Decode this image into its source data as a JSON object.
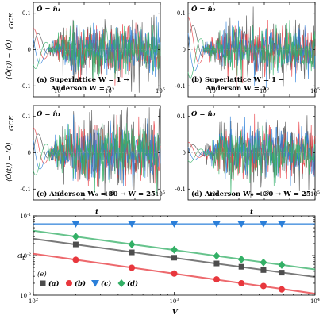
{
  "panels": [
    {
      "key": "a",
      "observable": "Ô = n̂₁",
      "label": "(a) Superlattice W = 1 →",
      "label2": "Anderson W = 5"
    },
    {
      "key": "b",
      "observable": "Ô = n̂₀",
      "label": "(b) Superlattice W = 1 →",
      "label2": "Anderson W = 5"
    },
    {
      "key": "c",
      "observable": "Ô = n̂₁",
      "label": "(c) Anderson W₀ = 30 → W = 25",
      "label2": ""
    },
    {
      "key": "d",
      "observable": "Ô = n̂₀",
      "label": "(d) Anderson W₀ = 30 → W = 25",
      "label2": ""
    }
  ],
  "ylabel_top": "⟨Ô(t)⟩ − ⟨Ô⟩",
  "ylabel_sub": "GCE",
  "xlabel_top": "t",
  "bottom_ylabel": "σ",
  "bottom_ylabel_sub": "t",
  "bottom_xlabel": "V",
  "bottom_tag": "(e)",
  "colors": {
    "a": "#4d4d4d",
    "b": "#e8373d",
    "c": "#2b7fd9",
    "d": "#33b066"
  },
  "chart_data": [
    {
      "type": "line",
      "panel": "a-d",
      "x_scale": "log",
      "xlim": [
        1,
        100000
      ],
      "ylim": [
        -0.13,
        0.13
      ],
      "x_ticks": [
        "10^1",
        "10^3",
        "10^5"
      ],
      "y_ticks": [
        "-0.1",
        "0",
        "0.1"
      ],
      "series": [
        {
          "color": "#4d4d4d",
          "style": "solid"
        },
        {
          "color": "#e8373d",
          "style": "solid"
        },
        {
          "color": "#2b7fd9",
          "style": "solid"
        },
        {
          "color": "#33b066",
          "style": "solid"
        }
      ]
    },
    {
      "type": "scatter",
      "panel": "e",
      "x_scale": "log",
      "y_scale": "log",
      "xlim": [
        100,
        10000
      ],
      "ylim": [
        0.001,
        0.1
      ],
      "x_ticks": [
        "10^2",
        "10^3",
        "10^4"
      ],
      "y_ticks": [
        "10^-1",
        "10^-2",
        "10^-3"
      ],
      "series": [
        {
          "name": "(a)",
          "marker": "square",
          "color": "#4d4d4d",
          "x": [
            200,
            500,
            1000,
            2000,
            3000,
            4300,
            5800
          ],
          "y": [
            0.019,
            0.012,
            0.0088,
            0.0063,
            0.0052,
            0.0043,
            0.0037
          ]
        },
        {
          "name": "(b)",
          "marker": "circle",
          "color": "#e8373d",
          "x": [
            200,
            500,
            1000,
            2000,
            3000,
            4300,
            5800
          ],
          "y": [
            0.0078,
            0.0049,
            0.0035,
            0.0025,
            0.002,
            0.0017,
            0.0014
          ]
        },
        {
          "name": "(c)",
          "marker": "triangle-down",
          "color": "#2b7fd9",
          "x": [
            200,
            500,
            1000,
            2000,
            3000,
            4300,
            5800
          ],
          "y": [
            0.062,
            0.062,
            0.062,
            0.062,
            0.062,
            0.062,
            0.062
          ]
        },
        {
          "name": "(d)",
          "marker": "diamond",
          "color": "#33b066",
          "x": [
            200,
            500,
            1000,
            2000,
            3000,
            4300,
            5800
          ],
          "y": [
            0.03,
            0.019,
            0.014,
            0.0098,
            0.008,
            0.0067,
            0.0058
          ]
        }
      ]
    }
  ]
}
